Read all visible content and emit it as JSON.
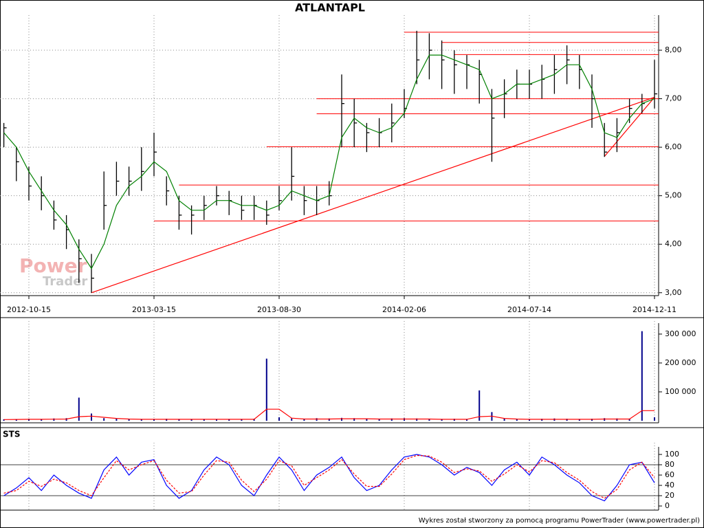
{
  "chart_data": [
    {
      "type": "hlc",
      "title": "ATLANTAPL",
      "watermark": [
        "Power",
        "Trader"
      ],
      "x": [
        "2012-09-17",
        "2012-10-01",
        "2012-10-15",
        "2012-10-30",
        "2012-11-14",
        "2012-11-29",
        "2012-12-14",
        "2012-12-31",
        "2013-01-15",
        "2013-01-30",
        "2013-02-14",
        "2013-03-01",
        "2013-03-15",
        "2013-04-02",
        "2013-04-18",
        "2013-05-06",
        "2013-05-22",
        "2013-06-07",
        "2013-06-24",
        "2013-07-10",
        "2013-07-26",
        "2013-08-13",
        "2013-08-30",
        "2013-09-16",
        "2013-10-02",
        "2013-10-18",
        "2013-11-04",
        "2013-11-20",
        "2013-12-06",
        "2013-12-20",
        "2014-01-08",
        "2014-01-23",
        "2014-02-06",
        "2014-02-21",
        "2014-03-10",
        "2014-03-25",
        "2014-04-09",
        "2014-04-25",
        "2014-05-13",
        "2014-05-28",
        "2014-06-13",
        "2014-06-27",
        "2014-07-14",
        "2014-07-29",
        "2014-08-12",
        "2014-08-27",
        "2014-09-10",
        "2014-09-25",
        "2014-10-09",
        "2014-10-24",
        "2014-11-10",
        "2014-11-25",
        "2014-12-11"
      ],
      "high": [
        6.5,
        6.0,
        5.6,
        5.4,
        4.9,
        4.6,
        4.1,
        3.8,
        5.5,
        5.7,
        5.6,
        6.0,
        6.3,
        5.4,
        5.0,
        4.8,
        5.0,
        5.2,
        5.1,
        5.0,
        5.0,
        4.9,
        5.2,
        6.0,
        5.2,
        5.2,
        5.3,
        7.5,
        7.0,
        6.5,
        6.6,
        6.9,
        7.2,
        8.4,
        8.35,
        8.2,
        8.0,
        7.9,
        7.8,
        7.2,
        7.4,
        7.6,
        7.6,
        7.7,
        7.9,
        8.1,
        7.9,
        7.5,
        6.5,
        6.6,
        7.0,
        7.1,
        7.8
      ],
      "low": [
        6.0,
        5.3,
        4.9,
        4.7,
        4.3,
        3.9,
        3.2,
        3.0,
        4.3,
        5.0,
        5.0,
        5.1,
        5.4,
        4.8,
        4.3,
        4.2,
        4.5,
        4.8,
        4.6,
        4.5,
        4.5,
        4.4,
        4.7,
        4.9,
        4.6,
        4.6,
        4.8,
        6.0,
        6.0,
        5.9,
        6.0,
        6.1,
        6.6,
        7.3,
        7.4,
        7.2,
        7.1,
        7.2,
        6.9,
        5.7,
        6.6,
        7.0,
        7.0,
        7.0,
        7.1,
        7.3,
        7.2,
        6.4,
        5.8,
        5.9,
        6.5,
        6.7,
        6.8
      ],
      "close": [
        6.4,
        5.7,
        5.2,
        5.0,
        4.5,
        4.3,
        3.7,
        3.3,
        4.8,
        5.3,
        5.3,
        5.5,
        5.9,
        5.1,
        4.6,
        4.6,
        4.8,
        5.0,
        4.9,
        4.7,
        4.8,
        4.6,
        4.9,
        5.4,
        4.9,
        4.9,
        5.0,
        6.9,
        6.5,
        6.3,
        6.3,
        6.5,
        6.8,
        7.8,
        8.0,
        7.8,
        7.7,
        7.7,
        7.5,
        6.6,
        7.1,
        7.3,
        7.3,
        7.4,
        7.6,
        7.8,
        7.6,
        7.0,
        5.9,
        6.3,
        6.8,
        6.9,
        7.1
      ],
      "ma": [
        6.3,
        6.0,
        5.5,
        5.1,
        4.7,
        4.4,
        3.9,
        3.5,
        4.0,
        4.8,
        5.2,
        5.4,
        5.7,
        5.5,
        4.9,
        4.7,
        4.7,
        4.9,
        4.9,
        4.8,
        4.8,
        4.7,
        4.8,
        5.1,
        5.0,
        4.9,
        5.0,
        6.2,
        6.6,
        6.4,
        6.3,
        6.4,
        6.7,
        7.4,
        7.9,
        7.9,
        7.8,
        7.7,
        7.6,
        7.0,
        7.1,
        7.3,
        7.3,
        7.4,
        7.5,
        7.7,
        7.7,
        7.2,
        6.3,
        6.2,
        6.6,
        6.9,
        7.0
      ],
      "bar_color": "#000000",
      "ma_color": "#008000",
      "line_color": "#ff0000",
      "levels": [
        {
          "from": "2014-02-06",
          "value": 8.37
        },
        {
          "from": "2014-03-25",
          "value": 8.16
        },
        {
          "from": "2014-04-09",
          "value": 7.91
        },
        {
          "from": "2013-10-18",
          "value": 7.0
        },
        {
          "from": "2013-10-18",
          "value": 6.69
        },
        {
          "from": "2013-08-13",
          "value": 6.01
        },
        {
          "from": "2013-04-18",
          "value": 5.22
        },
        {
          "from": "2013-03-15",
          "value": 4.48
        }
      ],
      "trendlines": [
        {
          "x": [
            "2012-12-31",
            "2014-12-11"
          ],
          "y": [
            3.0,
            7.03
          ]
        },
        {
          "x": [
            "2014-10-09",
            "2014-12-11"
          ],
          "y": [
            5.81,
            7.03
          ]
        }
      ],
      "ylim": [
        2.94,
        8.61
      ],
      "yticks": [
        {
          "value": 3,
          "label": "3,00"
        },
        {
          "value": 4,
          "label": "4,00"
        },
        {
          "value": 5,
          "label": "5,00"
        },
        {
          "value": 6,
          "label": "6,00"
        },
        {
          "value": 7,
          "label": "7,00"
        },
        {
          "value": 8,
          "label": "8,00"
        }
      ],
      "xticks": [
        "2012-10-15",
        "2013-03-15",
        "2013-08-30",
        "2014-02-06",
        "2014-07-14",
        "2014-12-11"
      ],
      "grid": "both"
    },
    {
      "type": "bar",
      "color": "#00008b",
      "average_color": "#ff0000",
      "values": [
        5000,
        6000,
        7000,
        6000,
        8000,
        9000,
        80000,
        25000,
        9000,
        7000,
        6000,
        5000,
        6000,
        7000,
        6000,
        5000,
        6000,
        5000,
        5000,
        6000,
        7000,
        215000,
        12000,
        8000,
        7000,
        9000,
        8000,
        10000,
        9000,
        8000,
        7000,
        8000,
        9000,
        8000,
        7000,
        6000,
        7000,
        6000,
        105000,
        30000,
        8000,
        7000,
        6000,
        7000,
        8000,
        7000,
        6000,
        7000,
        9000,
        8000,
        7000,
        310000,
        12000
      ],
      "average": [
        4000,
        4500,
        5000,
        5000,
        5500,
        6000,
        14000,
        16000,
        12000,
        8000,
        6000,
        5000,
        5000,
        5000,
        5000,
        5000,
        5000,
        5000,
        5000,
        5000,
        5000,
        40000,
        40000,
        9000,
        6000,
        6000,
        6000,
        7000,
        7000,
        7000,
        6000,
        6000,
        6000,
        6000,
        6000,
        5000,
        5000,
        5000,
        14000,
        16000,
        8000,
        6000,
        5000,
        5000,
        5000,
        5000,
        5000,
        5000,
        6000,
        6000,
        6000,
        35000,
        35000
      ],
      "ylim": [
        0,
        326000
      ],
      "yticks": [
        {
          "value": 100000,
          "label": "100 000"
        },
        {
          "value": 200000,
          "label": "200 000"
        },
        {
          "value": 300000,
          "label": "300 000"
        }
      ],
      "grid": "x"
    },
    {
      "type": "line",
      "title": "STS",
      "series": [
        {
          "color": "#0000ff",
          "dash": false,
          "values": [
            20,
            35,
            55,
            30,
            60,
            40,
            25,
            15,
            70,
            95,
            60,
            85,
            90,
            40,
            15,
            30,
            70,
            95,
            80,
            40,
            20,
            60,
            95,
            70,
            30,
            60,
            75,
            95,
            55,
            30,
            40,
            70,
            95,
            100,
            95,
            80,
            60,
            75,
            65,
            40,
            70,
            85,
            60,
            95,
            80,
            60,
            45,
            20,
            10,
            40,
            80,
            85,
            45
          ]
        },
        {
          "color": "#ff0000",
          "dash": true,
          "values": [
            25,
            30,
            48,
            38,
            52,
            45,
            30,
            20,
            55,
            88,
            70,
            80,
            88,
            50,
            25,
            28,
            60,
            88,
            85,
            50,
            28,
            52,
            88,
            78,
            40,
            55,
            70,
            90,
            62,
            38,
            38,
            62,
            90,
            98,
            97,
            85,
            65,
            72,
            68,
            48,
            62,
            80,
            66,
            88,
            84,
            65,
            50,
            28,
            15,
            32,
            70,
            85,
            55
          ]
        }
      ],
      "levels": [
        20,
        80
      ],
      "ylim": [
        -8,
        112
      ],
      "yticks": [
        0,
        20,
        40,
        60,
        80,
        100
      ],
      "grid": "x"
    }
  ],
  "footer": "Wykres został stworzony za pomocą programu PowerTrader (www.powertrader.pl)"
}
